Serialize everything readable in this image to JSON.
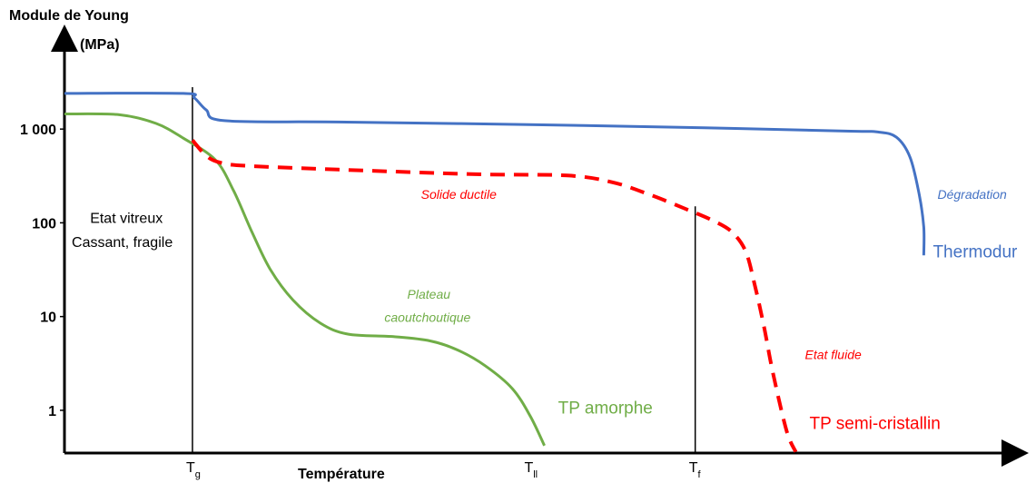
{
  "chart_data": {
    "type": "line",
    "title": "",
    "ylabel_line1": "Module de Young",
    "ylabel_line2": "(MPa)",
    "xlabel": "Température",
    "yscale": "log",
    "ylim": [
      0.35,
      5000
    ],
    "y_ticks": [
      {
        "value": 1000,
        "label": "1 000"
      },
      {
        "value": 100,
        "label": "100"
      },
      {
        "value": 10,
        "label": "10"
      },
      {
        "value": 1,
        "label": "1"
      }
    ],
    "x_markers": [
      {
        "id": "tg",
        "base": "T",
        "sub": "g",
        "x": 14,
        "line_top": 2800
      },
      {
        "id": "tll",
        "base": "T",
        "sub": "ll",
        "x": 51,
        "line_top": null
      },
      {
        "id": "tf",
        "base": "T",
        "sub": "f",
        "x": 69,
        "line_top": 150
      }
    ],
    "xlim": [
      0,
      103
    ],
    "grid": false,
    "colors": {
      "thermodur": "#4472c4",
      "amorphe": "#70ad47",
      "semi": "#ff0000",
      "axis": "#000000"
    },
    "series": [
      {
        "name": "Thermodur",
        "color": "#4472c4",
        "style": "solid",
        "points": [
          [
            0,
            2400
          ],
          [
            13,
            2400
          ],
          [
            14.2,
            2150
          ],
          [
            15.5,
            1600
          ],
          [
            17.5,
            1230
          ],
          [
            30,
            1190
          ],
          [
            50,
            1120
          ],
          [
            70,
            1030
          ],
          [
            86,
            950
          ],
          [
            89,
            930
          ],
          [
            91,
            820
          ],
          [
            92.5,
            500
          ],
          [
            93.5,
            200
          ],
          [
            94,
            90
          ],
          [
            94,
            45
          ]
        ]
      },
      {
        "name": "TP amorphe",
        "color": "#70ad47",
        "style": "solid",
        "points": [
          [
            0,
            1450
          ],
          [
            6,
            1420
          ],
          [
            10,
            1150
          ],
          [
            13,
            800
          ],
          [
            16.5,
            470
          ],
          [
            18.5,
            220
          ],
          [
            20.5,
            80
          ],
          [
            22.5,
            32
          ],
          [
            25,
            15
          ],
          [
            28,
            8.5
          ],
          [
            31,
            6.5
          ],
          [
            36,
            6.1
          ],
          [
            40,
            5.5
          ],
          [
            43,
            4.4
          ],
          [
            46,
            3
          ],
          [
            49,
            1.7
          ],
          [
            51,
            0.85
          ],
          [
            52.5,
            0.42
          ]
        ]
      },
      {
        "name": "TP semi-cristallin",
        "color": "#ff0000",
        "style": "dashed",
        "points": [
          [
            14,
            760
          ],
          [
            15.5,
            520
          ],
          [
            17,
            440
          ],
          [
            20,
            405
          ],
          [
            30,
            370
          ],
          [
            45,
            330
          ],
          [
            55,
            320
          ],
          [
            60,
            270
          ],
          [
            64,
            200
          ],
          [
            68,
            140
          ],
          [
            71,
            105
          ],
          [
            73,
            80
          ],
          [
            74.5,
            50
          ],
          [
            75.5,
            22
          ],
          [
            76.5,
            8
          ],
          [
            77.5,
            2.5
          ],
          [
            79,
            0.6
          ],
          [
            80,
            0.36
          ]
        ]
      }
    ],
    "annotations": [
      {
        "id": "degradation",
        "text": "Dégradation",
        "x": 95.5,
        "y": 180,
        "color": "#4472c4",
        "style": "italic",
        "size": 14
      },
      {
        "id": "thermodur",
        "text": "Thermodur",
        "x": 95,
        "y": 43,
        "color": "#4472c4",
        "style": "normal",
        "size": 19
      },
      {
        "id": "solide-ductile",
        "text": "Solide ductile",
        "x": 39,
        "y": 180,
        "color": "#ff0000",
        "style": "italic",
        "size": 14
      },
      {
        "id": "plateau-1",
        "text": "Plateau",
        "x": 37.5,
        "y": 15.5,
        "color": "#70ad47",
        "style": "italic",
        "size": 14
      },
      {
        "id": "plateau-2",
        "text": "caoutchoutique",
        "x": 35,
        "y": 8.8,
        "color": "#70ad47",
        "style": "italic",
        "size": 14
      },
      {
        "id": "etat-fluide",
        "text": "Etat fluide",
        "x": 81,
        "y": 3.5,
        "color": "#ff0000",
        "style": "italic",
        "size": 14
      },
      {
        "id": "tp-amorphe",
        "text": "TP amorphe",
        "x": 54,
        "y": 0.92,
        "color": "#70ad47",
        "style": "normal",
        "size": 19
      },
      {
        "id": "tp-semi",
        "text": "TP semi-cristallin",
        "x": 81.5,
        "y": 0.63,
        "color": "#ff0000",
        "style": "normal",
        "size": 19
      },
      {
        "id": "etat-vitreux-1",
        "text": "Etat vitreux",
        "x": 2.8,
        "y": 100,
        "color": "#000000",
        "style": "normal",
        "size": 16
      },
      {
        "id": "etat-vitreux-2",
        "text": "Cassant, fragile",
        "x": 0.8,
        "y": 55,
        "color": "#000000",
        "style": "normal",
        "size": 16
      }
    ]
  }
}
